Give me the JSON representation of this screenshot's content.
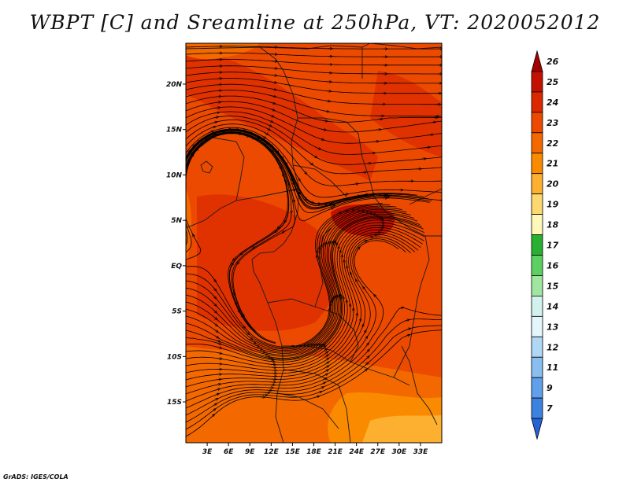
{
  "title": "WBPT [C] and Sreamline at 250hPa, VT: 2020052012",
  "credit": "GrADS: IGES/COLA",
  "map": {
    "type": "shaded-field-with-streamlines",
    "variable": "WBPT",
    "units": "C",
    "level": "250hPa",
    "valid_time": "2020052012",
    "lon_range_deg_east": [
      0,
      36
    ],
    "lat_range_deg": [
      -19.5,
      24.5
    ],
    "x_ticks": [
      "3E",
      "6E",
      "9E",
      "12E",
      "15E",
      "18E",
      "21E",
      "24E",
      "27E",
      "30E",
      "33E"
    ],
    "y_ticks": [
      "20N",
      "15N",
      "10N",
      "5N",
      "EQ",
      "5S",
      "10S",
      "15S"
    ]
  },
  "colorbar": {
    "labels": [
      "26",
      "25",
      "24",
      "23",
      "22",
      "21",
      "20",
      "19",
      "18",
      "17",
      "16",
      "15",
      "14",
      "13",
      "12",
      "11",
      "9",
      "7"
    ],
    "colors": [
      "#a50000",
      "#c41000",
      "#dc2800",
      "#ec4a00",
      "#f46800",
      "#fa8a00",
      "#fdb030",
      "#fdd870",
      "#fff8b8",
      "#28b030",
      "#5cd060",
      "#a0e6a0",
      "#d2f2ee",
      "#e4f6fc",
      "#b0d8f6",
      "#88bef0",
      "#60a0ea",
      "#3c82e0",
      "#2462d8"
    ]
  },
  "field_colors": {
    "warm_24": "#e03200",
    "mid_23": "#ec4a00",
    "mid_22": "#f46800",
    "cool_21": "#fa8a00",
    "cool_20": "#fdb030"
  }
}
